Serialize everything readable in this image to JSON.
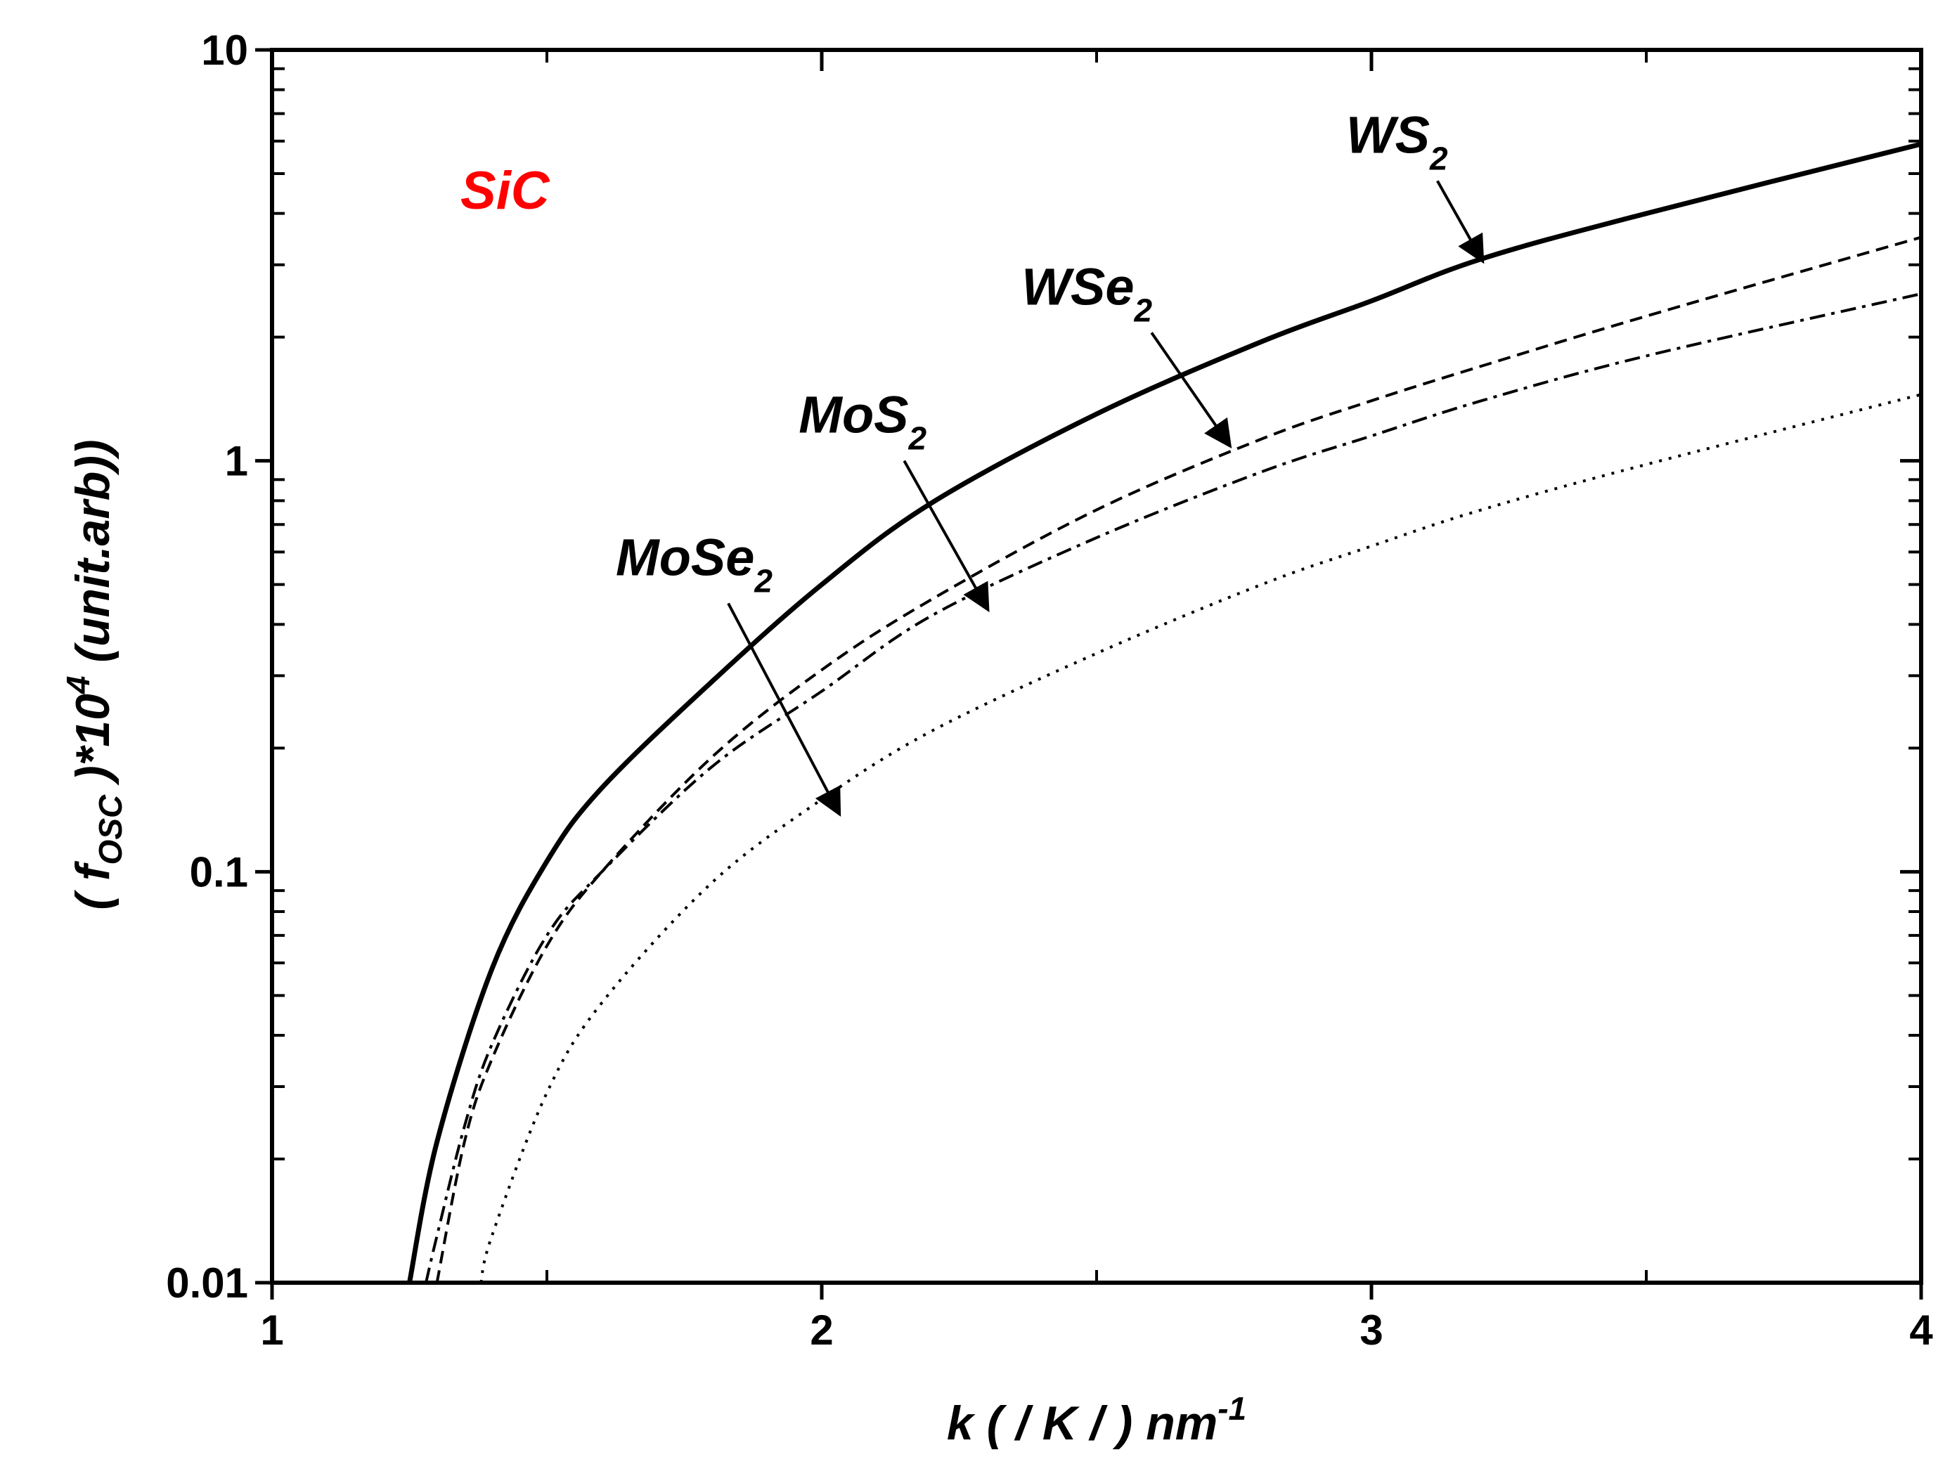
{
  "chart_data": {
    "type": "line",
    "xlabel": {
      "main": "k ( / K / ) nm",
      "sup": "-1"
    },
    "ylabel": {
      "open": "( f",
      "sub": "OSC",
      "mid": " )*10",
      "sup": "4",
      "rest": "  (unit.arb))"
    },
    "xlim": [
      1,
      4
    ],
    "ylim": [
      0.01,
      10
    ],
    "yscale": "log",
    "x_ticks": [
      {
        "value": 1,
        "label": "1"
      },
      {
        "value": 2,
        "label": "2"
      },
      {
        "value": 3,
        "label": "3"
      },
      {
        "value": 4,
        "label": "4"
      }
    ],
    "y_ticks": [
      {
        "value": 0.01,
        "label": "0.01"
      },
      {
        "value": 0.1,
        "label": "0.1"
      },
      {
        "value": 1,
        "label": "1"
      },
      {
        "value": 10,
        "label": "10"
      }
    ],
    "inset_label": {
      "text": "SiC",
      "color": "#ff0000"
    },
    "series": [
      {
        "name": "WS2",
        "base": "WS",
        "sub": "2",
        "style": "solid",
        "stroke_width": 7,
        "x": [
          1.25,
          1.3,
          1.4,
          1.5,
          1.6,
          1.8,
          2.0,
          2.2,
          2.5,
          2.8,
          3.0,
          3.2,
          3.5,
          4.0
        ],
        "y": [
          0.01,
          0.022,
          0.058,
          0.106,
          0.16,
          0.29,
          0.5,
          0.79,
          1.3,
          1.95,
          2.45,
          3.1,
          4.0,
          5.9
        ]
      },
      {
        "name": "WSe2",
        "base": "WSe",
        "sub": "2",
        "style": "dashed",
        "stroke_width": 4,
        "x": [
          1.3,
          1.35,
          1.4,
          1.5,
          1.6,
          1.8,
          2.0,
          2.2,
          2.5,
          2.8,
          3.0,
          3.2,
          3.5,
          4.0
        ],
        "y": [
          0.01,
          0.022,
          0.035,
          0.066,
          0.1,
          0.19,
          0.31,
          0.46,
          0.76,
          1.13,
          1.4,
          1.7,
          2.25,
          3.5
        ]
      },
      {
        "name": "MoS2",
        "base": "MoS",
        "sub": "2",
        "style": "dashdot",
        "stroke_width": 4,
        "x": [
          1.28,
          1.3,
          1.35,
          1.4,
          1.5,
          1.6,
          1.8,
          2.0,
          2.2,
          2.5,
          2.8,
          3.0,
          3.2,
          3.5,
          4.0
        ],
        "y": [
          0.01,
          0.013,
          0.024,
          0.038,
          0.07,
          0.1,
          0.18,
          0.275,
          0.42,
          0.65,
          0.94,
          1.15,
          1.4,
          1.8,
          2.55
        ]
      },
      {
        "name": "MoSe2",
        "base": "MoSe",
        "sub": "2",
        "style": "dotted",
        "stroke_width": 4,
        "x": [
          1.38,
          1.4,
          1.5,
          1.6,
          1.8,
          2.0,
          2.2,
          2.5,
          2.8,
          3.0,
          3.2,
          3.5,
          4.0
        ],
        "y": [
          0.01,
          0.013,
          0.029,
          0.048,
          0.094,
          0.15,
          0.22,
          0.34,
          0.5,
          0.62,
          0.76,
          0.98,
          1.45
        ]
      }
    ],
    "annotations": [
      {
        "series": "WS2",
        "arrow_from": [
          3.12,
          4.8
        ],
        "arrow_to": [
          3.2,
          3.1
        ]
      },
      {
        "series": "WSe2",
        "arrow_from": [
          2.6,
          2.05
        ],
        "arrow_to": [
          2.74,
          1.1
        ]
      },
      {
        "series": "MoS2",
        "arrow_from": [
          2.15,
          1.0
        ],
        "arrow_to": [
          2.3,
          0.44
        ]
      },
      {
        "series": "MoSe2",
        "arrow_from": [
          1.83,
          0.45
        ],
        "arrow_to": [
          2.03,
          0.14
        ]
      }
    ]
  }
}
